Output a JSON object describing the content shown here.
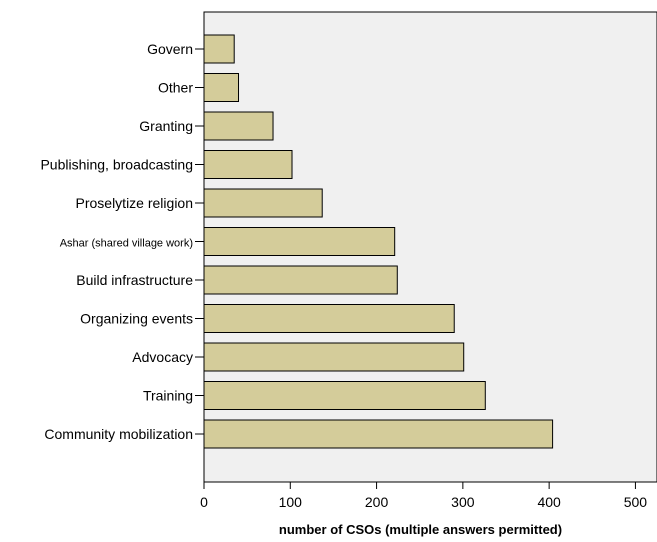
{
  "chart_data": {
    "type": "bar",
    "orientation": "horizontal",
    "categories": [
      "Govern",
      "Other",
      "Granting",
      "Publishing, broadcasting",
      "Proselytize religion",
      "Ashar (shared village work)",
      "Build infrastructure",
      "Organizing events",
      "Advocacy",
      "Training",
      "Community mobilization"
    ],
    "values": [
      35,
      40,
      80,
      102,
      137,
      221,
      224,
      290,
      301,
      326,
      404
    ],
    "title": "",
    "xlabel": "number of CSOs (multiple answers permitted)",
    "ylabel": "",
    "xlim": [
      0,
      525
    ],
    "xticks": [
      "0",
      "100",
      "200",
      "300",
      "400",
      "500"
    ],
    "grid": false,
    "legend": "none",
    "colors": {
      "bar_fill": "#d4cc9a",
      "bar_stroke": "#000000",
      "plot_background": "#f0f0f0"
    }
  }
}
